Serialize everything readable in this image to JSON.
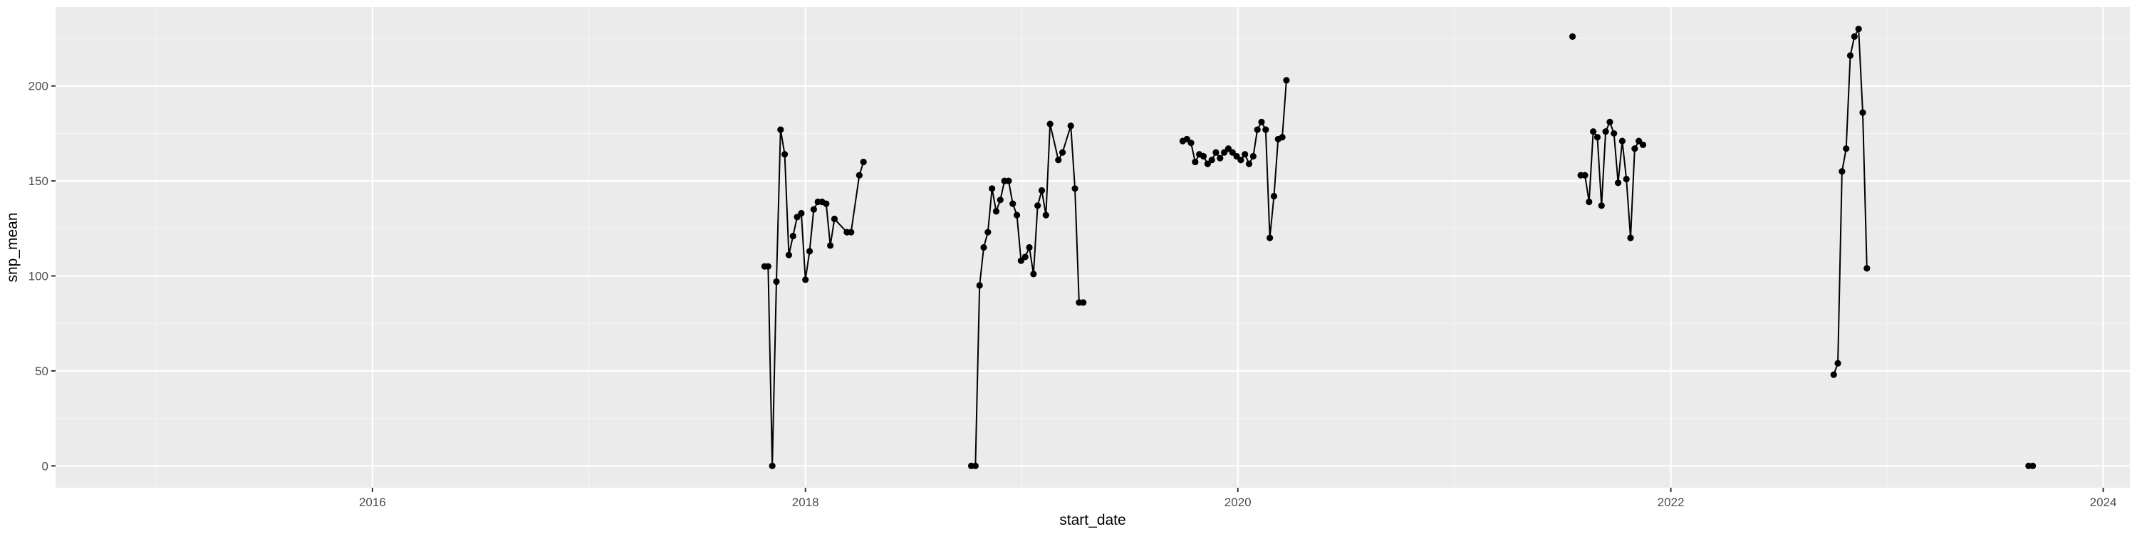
{
  "chart_data": {
    "type": "line",
    "title": "",
    "xlabel": "start_date",
    "ylabel": "snp_mean",
    "x_axis_kind": "date",
    "xlim": [
      "2014-07-15",
      "2024-02-15"
    ],
    "ylim": [
      -11.5,
      241.5
    ],
    "x_ticks": [
      {
        "date": "2016-01-01",
        "label": "2016"
      },
      {
        "date": "2018-01-01",
        "label": "2018"
      },
      {
        "date": "2020-01-01",
        "label": "2020"
      },
      {
        "date": "2022-01-01",
        "label": "2022"
      },
      {
        "date": "2024-01-01",
        "label": "2024"
      }
    ],
    "y_ticks": [
      0,
      50,
      100,
      150,
      200
    ],
    "grid": true,
    "legend": "none",
    "colors": {
      "panel_background": "#ebebeb",
      "grid_major": "#ffffff",
      "grid_minor": "#f5f5f5",
      "series": "#000000",
      "tick_label": "#4d4d4d",
      "axis_title": "#000000"
    },
    "series": [
      {
        "points": [
          {
            "x": "2017-10-24",
            "y": 105
          },
          {
            "x": "2017-10-30",
            "y": 105
          },
          {
            "x": "2017-11-06",
            "y": 0
          },
          {
            "x": "2017-11-13",
            "y": 97
          },
          {
            "x": "2017-11-20",
            "y": 177
          },
          {
            "x": "2017-11-27",
            "y": 164
          },
          {
            "x": "2017-12-04",
            "y": 111
          },
          {
            "x": "2017-12-11",
            "y": 121
          },
          {
            "x": "2017-12-18",
            "y": 131
          },
          {
            "x": "2017-12-25",
            "y": 133
          },
          {
            "x": "2018-01-01",
            "y": 98
          },
          {
            "x": "2018-01-08",
            "y": 113
          },
          {
            "x": "2018-01-15",
            "y": 135
          },
          {
            "x": "2018-01-22",
            "y": 139
          },
          {
            "x": "2018-01-29",
            "y": 139
          },
          {
            "x": "2018-02-05",
            "y": 138
          },
          {
            "x": "2018-02-12",
            "y": 116
          },
          {
            "x": "2018-02-19",
            "y": 130
          },
          {
            "x": "2018-03-12",
            "y": 123
          },
          {
            "x": "2018-03-19",
            "y": 123
          },
          {
            "x": "2018-04-02",
            "y": 153
          },
          {
            "x": "2018-04-09",
            "y": 160
          }
        ]
      },
      {
        "points": [
          {
            "x": "2018-10-08",
            "y": 0
          },
          {
            "x": "2018-10-15",
            "y": 0
          },
          {
            "x": "2018-10-22",
            "y": 95
          },
          {
            "x": "2018-10-29",
            "y": 115
          },
          {
            "x": "2018-11-05",
            "y": 123
          },
          {
            "x": "2018-11-12",
            "y": 146
          },
          {
            "x": "2018-11-19",
            "y": 134
          },
          {
            "x": "2018-11-26",
            "y": 140
          },
          {
            "x": "2018-12-03",
            "y": 150
          },
          {
            "x": "2018-12-10",
            "y": 150
          },
          {
            "x": "2018-12-17",
            "y": 138
          },
          {
            "x": "2018-12-24",
            "y": 132
          },
          {
            "x": "2018-12-31",
            "y": 108
          },
          {
            "x": "2019-01-07",
            "y": 110
          },
          {
            "x": "2019-01-14",
            "y": 115
          },
          {
            "x": "2019-01-21",
            "y": 101
          },
          {
            "x": "2019-01-28",
            "y": 137
          },
          {
            "x": "2019-02-04",
            "y": 145
          },
          {
            "x": "2019-02-11",
            "y": 132
          },
          {
            "x": "2019-02-18",
            "y": 180
          },
          {
            "x": "2019-03-04",
            "y": 161
          },
          {
            "x": "2019-03-11",
            "y": 165
          },
          {
            "x": "2019-03-25",
            "y": 179
          },
          {
            "x": "2019-04-01",
            "y": 146
          },
          {
            "x": "2019-04-08",
            "y": 86
          },
          {
            "x": "2019-04-15",
            "y": 86
          }
        ]
      },
      {
        "points": [
          {
            "x": "2019-09-30",
            "y": 171
          },
          {
            "x": "2019-10-07",
            "y": 172
          },
          {
            "x": "2019-10-14",
            "y": 170
          },
          {
            "x": "2019-10-21",
            "y": 160
          },
          {
            "x": "2019-10-28",
            "y": 164
          },
          {
            "x": "2019-11-04",
            "y": 163
          },
          {
            "x": "2019-11-11",
            "y": 159
          },
          {
            "x": "2019-11-18",
            "y": 161
          },
          {
            "x": "2019-11-25",
            "y": 165
          },
          {
            "x": "2019-12-02",
            "y": 162
          },
          {
            "x": "2019-12-09",
            "y": 165
          },
          {
            "x": "2019-12-16",
            "y": 167
          },
          {
            "x": "2019-12-23",
            "y": 165
          },
          {
            "x": "2019-12-30",
            "y": 163
          },
          {
            "x": "2020-01-06",
            "y": 161
          },
          {
            "x": "2020-01-13",
            "y": 164
          },
          {
            "x": "2020-01-20",
            "y": 159
          },
          {
            "x": "2020-01-27",
            "y": 163
          },
          {
            "x": "2020-02-03",
            "y": 177
          },
          {
            "x": "2020-02-10",
            "y": 181
          },
          {
            "x": "2020-02-17",
            "y": 177
          },
          {
            "x": "2020-02-24",
            "y": 120
          },
          {
            "x": "2020-03-02",
            "y": 142
          },
          {
            "x": "2020-03-09",
            "y": 172
          },
          {
            "x": "2020-03-16",
            "y": 173
          },
          {
            "x": "2020-03-23",
            "y": 203
          }
        ]
      },
      {
        "points": [
          {
            "x": "2021-07-19",
            "y": 226
          }
        ]
      },
      {
        "points": [
          {
            "x": "2021-08-02",
            "y": 153
          },
          {
            "x": "2021-08-09",
            "y": 153
          },
          {
            "x": "2021-08-16",
            "y": 139
          },
          {
            "x": "2021-08-23",
            "y": 176
          },
          {
            "x": "2021-08-30",
            "y": 173
          },
          {
            "x": "2021-09-06",
            "y": 137
          },
          {
            "x": "2021-09-13",
            "y": 176
          },
          {
            "x": "2021-09-20",
            "y": 181
          },
          {
            "x": "2021-09-27",
            "y": 175
          },
          {
            "x": "2021-10-04",
            "y": 149
          },
          {
            "x": "2021-10-11",
            "y": 171
          },
          {
            "x": "2021-10-18",
            "y": 151
          },
          {
            "x": "2021-10-25",
            "y": 120
          },
          {
            "x": "2021-11-01",
            "y": 167
          },
          {
            "x": "2021-11-08",
            "y": 171
          },
          {
            "x": "2021-11-15",
            "y": 169
          }
        ]
      },
      {
        "points": [
          {
            "x": "2022-10-03",
            "y": 48
          },
          {
            "x": "2022-10-10",
            "y": 54
          },
          {
            "x": "2022-10-17",
            "y": 155
          },
          {
            "x": "2022-10-24",
            "y": 167
          },
          {
            "x": "2022-10-31",
            "y": 216
          },
          {
            "x": "2022-11-07",
            "y": 226
          },
          {
            "x": "2022-11-14",
            "y": 230
          },
          {
            "x": "2022-11-21",
            "y": 186
          },
          {
            "x": "2022-11-28",
            "y": 104
          }
        ]
      },
      {
        "points": [
          {
            "x": "2023-08-28",
            "y": 0
          },
          {
            "x": "2023-09-04",
            "y": 0
          }
        ]
      }
    ]
  }
}
